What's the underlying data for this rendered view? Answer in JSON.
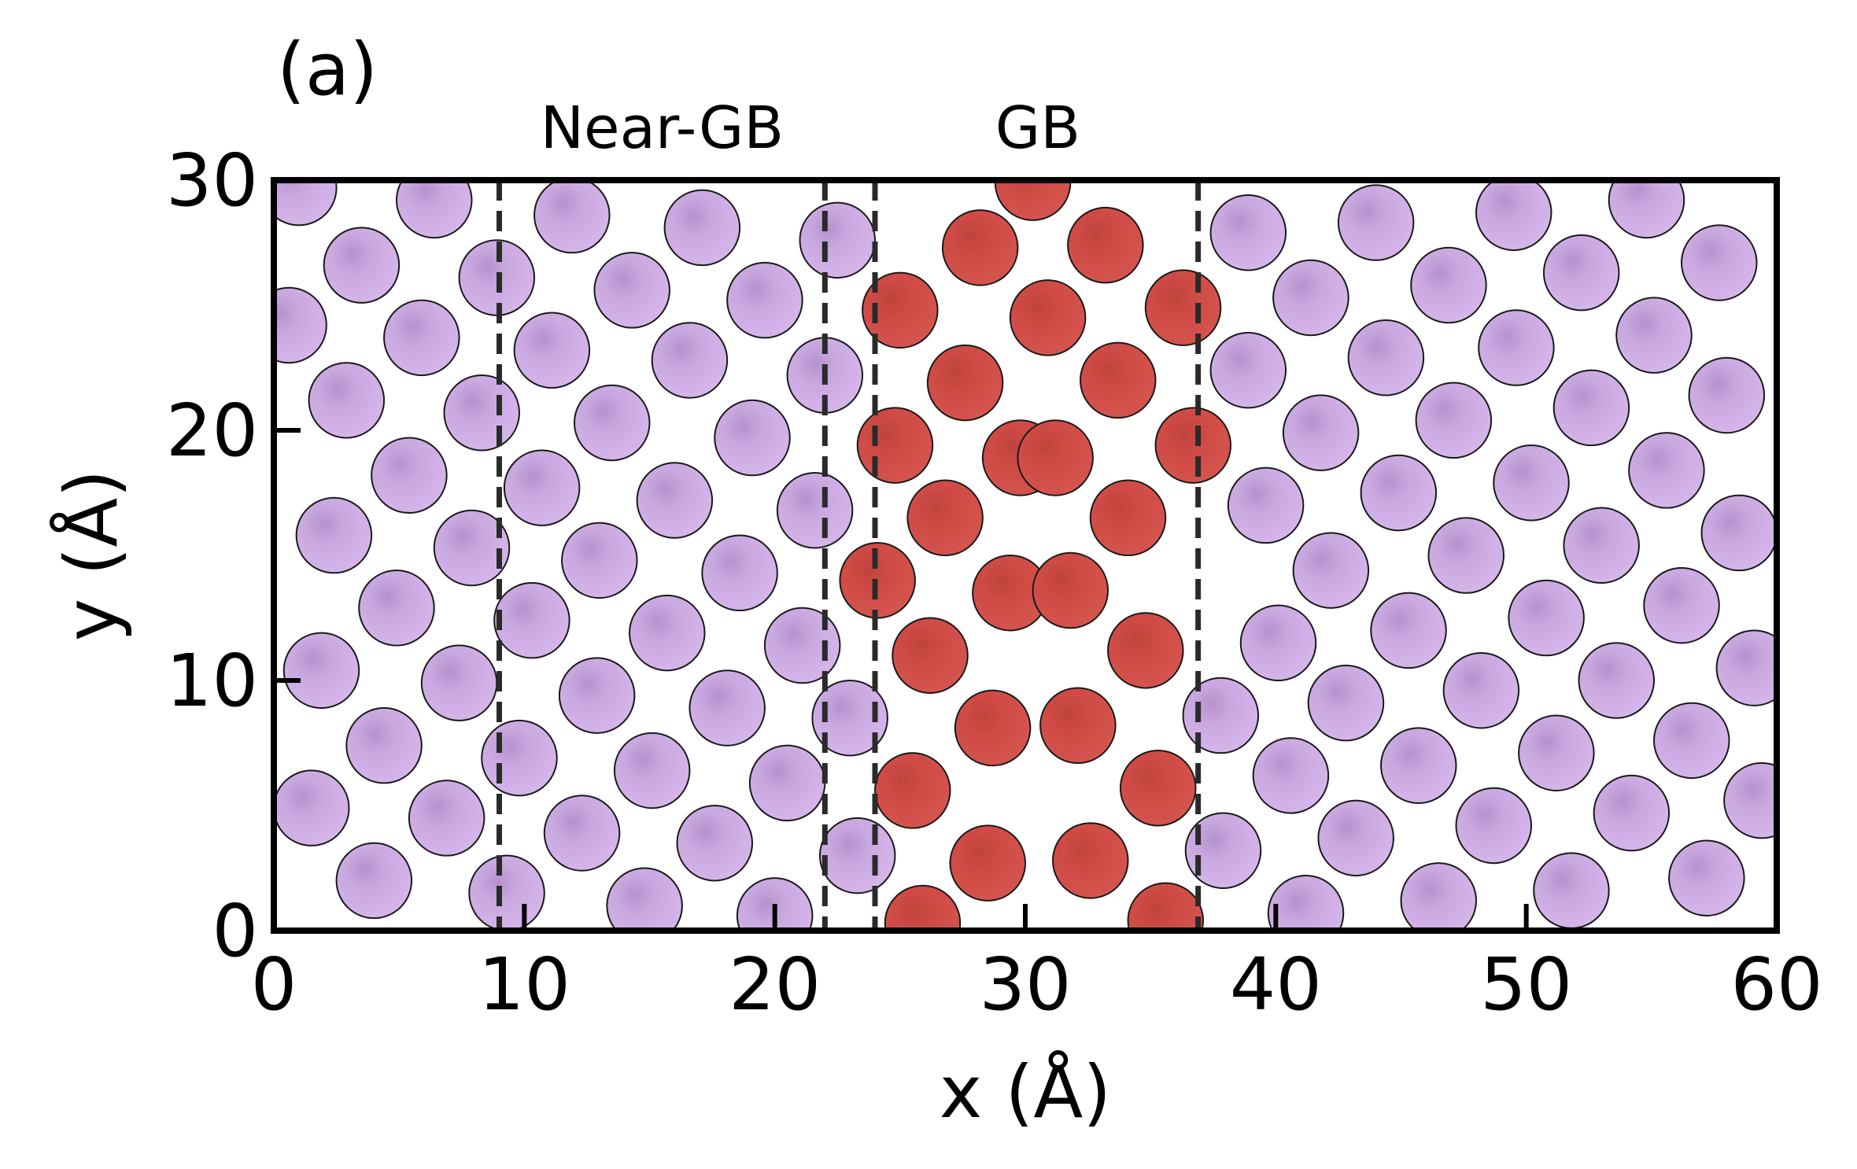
{
  "chart_data": {
    "type": "scatter",
    "panel_label": "(a)",
    "title": "",
    "xlabel": "x (Å)",
    "ylabel": "y (Å)",
    "xlim": [
      0,
      60
    ],
    "ylim": [
      0,
      30
    ],
    "xticks": [
      0,
      10,
      20,
      30,
      40,
      50,
      60
    ],
    "yticks": [
      0,
      10,
      20,
      30
    ],
    "xtick_labels": [
      "0",
      "10",
      "20",
      "30",
      "40",
      "50",
      "60"
    ],
    "ytick_labels": [
      "0",
      "10",
      "20",
      "30"
    ],
    "grid": false,
    "colors": {
      "bulk": "#c9a8e0",
      "gb": "#cf4a44",
      "edge": "#1a1a1a",
      "divider": "#2a2a2a"
    },
    "region_labels": [
      {
        "text": "Near-GB",
        "x": 15.5
      },
      {
        "text": "GB",
        "x": 30.5
      }
    ],
    "dividers_x": [
      9.0,
      22.0,
      24.0,
      36.9
    ],
    "atom_radius": 1.5,
    "series": [
      {
        "category": "bulk",
        "points": [
          [
            1.0,
            29.7
          ],
          [
            6.4,
            29.2
          ],
          [
            11.9,
            28.6
          ],
          [
            17.1,
            28.1
          ],
          [
            22.5,
            27.6
          ],
          [
            3.5,
            26.6
          ],
          [
            8.9,
            26.1
          ],
          [
            14.3,
            25.6
          ],
          [
            19.6,
            25.2
          ],
          [
            0.6,
            24.2
          ],
          [
            5.9,
            23.7
          ],
          [
            11.1,
            23.2
          ],
          [
            16.6,
            22.8
          ],
          [
            22.0,
            22.2
          ],
          [
            2.9,
            21.2
          ],
          [
            8.3,
            20.7
          ],
          [
            13.5,
            20.3
          ],
          [
            19.1,
            19.7
          ],
          [
            5.4,
            18.2
          ],
          [
            10.7,
            17.7
          ],
          [
            16.0,
            17.2
          ],
          [
            21.6,
            16.8
          ],
          [
            2.4,
            15.8
          ],
          [
            7.9,
            15.3
          ],
          [
            13.0,
            14.8
          ],
          [
            18.6,
            14.3
          ],
          [
            4.9,
            12.9
          ],
          [
            10.3,
            12.4
          ],
          [
            15.7,
            11.9
          ],
          [
            21.1,
            11.4
          ],
          [
            1.9,
            10.4
          ],
          [
            7.4,
            9.9
          ],
          [
            12.9,
            9.4
          ],
          [
            18.1,
            8.9
          ],
          [
            23.0,
            8.5
          ],
          [
            4.4,
            7.4
          ],
          [
            9.8,
            6.9
          ],
          [
            15.1,
            6.4
          ],
          [
            20.5,
            5.9
          ],
          [
            1.5,
            4.9
          ],
          [
            6.9,
            4.5
          ],
          [
            12.3,
            3.9
          ],
          [
            17.6,
            3.5
          ],
          [
            23.3,
            3.0
          ],
          [
            4.0,
            2.0
          ],
          [
            9.3,
            1.5
          ],
          [
            14.8,
            1.0
          ],
          [
            20.0,
            0.6
          ],
          [
            38.9,
            27.9
          ],
          [
            44.0,
            28.3
          ],
          [
            49.5,
            28.7
          ],
          [
            54.8,
            29.2
          ],
          [
            41.4,
            25.3
          ],
          [
            46.9,
            25.8
          ],
          [
            52.2,
            26.3
          ],
          [
            57.7,
            26.7
          ],
          [
            38.9,
            22.4
          ],
          [
            44.4,
            22.9
          ],
          [
            49.6,
            23.3
          ],
          [
            55.1,
            23.8
          ],
          [
            41.8,
            19.9
          ],
          [
            47.1,
            20.4
          ],
          [
            52.6,
            20.9
          ],
          [
            58.0,
            21.4
          ],
          [
            39.6,
            17.0
          ],
          [
            44.9,
            17.5
          ],
          [
            50.2,
            17.9
          ],
          [
            55.6,
            18.4
          ],
          [
            42.2,
            14.4
          ],
          [
            47.6,
            15.0
          ],
          [
            53.0,
            15.4
          ],
          [
            58.5,
            15.9
          ],
          [
            40.1,
            11.5
          ],
          [
            45.3,
            12.0
          ],
          [
            50.8,
            12.5
          ],
          [
            56.2,
            13.0
          ],
          [
            37.8,
            8.6
          ],
          [
            42.8,
            9.1
          ],
          [
            48.2,
            9.6
          ],
          [
            53.6,
            10.0
          ],
          [
            59.1,
            10.5
          ],
          [
            40.6,
            6.2
          ],
          [
            45.7,
            6.6
          ],
          [
            51.2,
            7.1
          ],
          [
            56.6,
            7.6
          ],
          [
            37.9,
            3.2
          ],
          [
            43.2,
            3.7
          ],
          [
            48.7,
            4.2
          ],
          [
            54.2,
            4.7
          ],
          [
            59.4,
            5.2
          ],
          [
            41.2,
            0.7
          ],
          [
            46.5,
            1.2
          ],
          [
            51.8,
            1.6
          ],
          [
            57.2,
            2.1
          ]
        ]
      },
      {
        "category": "gb",
        "points": [
          [
            30.3,
            29.9
          ],
          [
            28.2,
            27.3
          ],
          [
            33.2,
            27.4
          ],
          [
            25.0,
            24.8
          ],
          [
            30.9,
            24.5
          ],
          [
            36.3,
            24.9
          ],
          [
            27.6,
            21.9
          ],
          [
            33.7,
            22.0
          ],
          [
            24.8,
            19.4
          ],
          [
            29.8,
            18.9
          ],
          [
            31.2,
            18.9
          ],
          [
            36.7,
            19.4
          ],
          [
            26.8,
            16.5
          ],
          [
            34.1,
            16.5
          ],
          [
            24.1,
            14.0
          ],
          [
            29.4,
            13.5
          ],
          [
            31.8,
            13.6
          ],
          [
            26.2,
            11.0
          ],
          [
            34.8,
            11.2
          ],
          [
            28.7,
            8.1
          ],
          [
            32.1,
            8.2
          ],
          [
            25.5,
            5.6
          ],
          [
            35.3,
            5.7
          ],
          [
            28.5,
            2.7
          ],
          [
            32.6,
            2.8
          ],
          [
            25.9,
            0.3
          ],
          [
            35.6,
            0.4
          ]
        ]
      }
    ]
  }
}
